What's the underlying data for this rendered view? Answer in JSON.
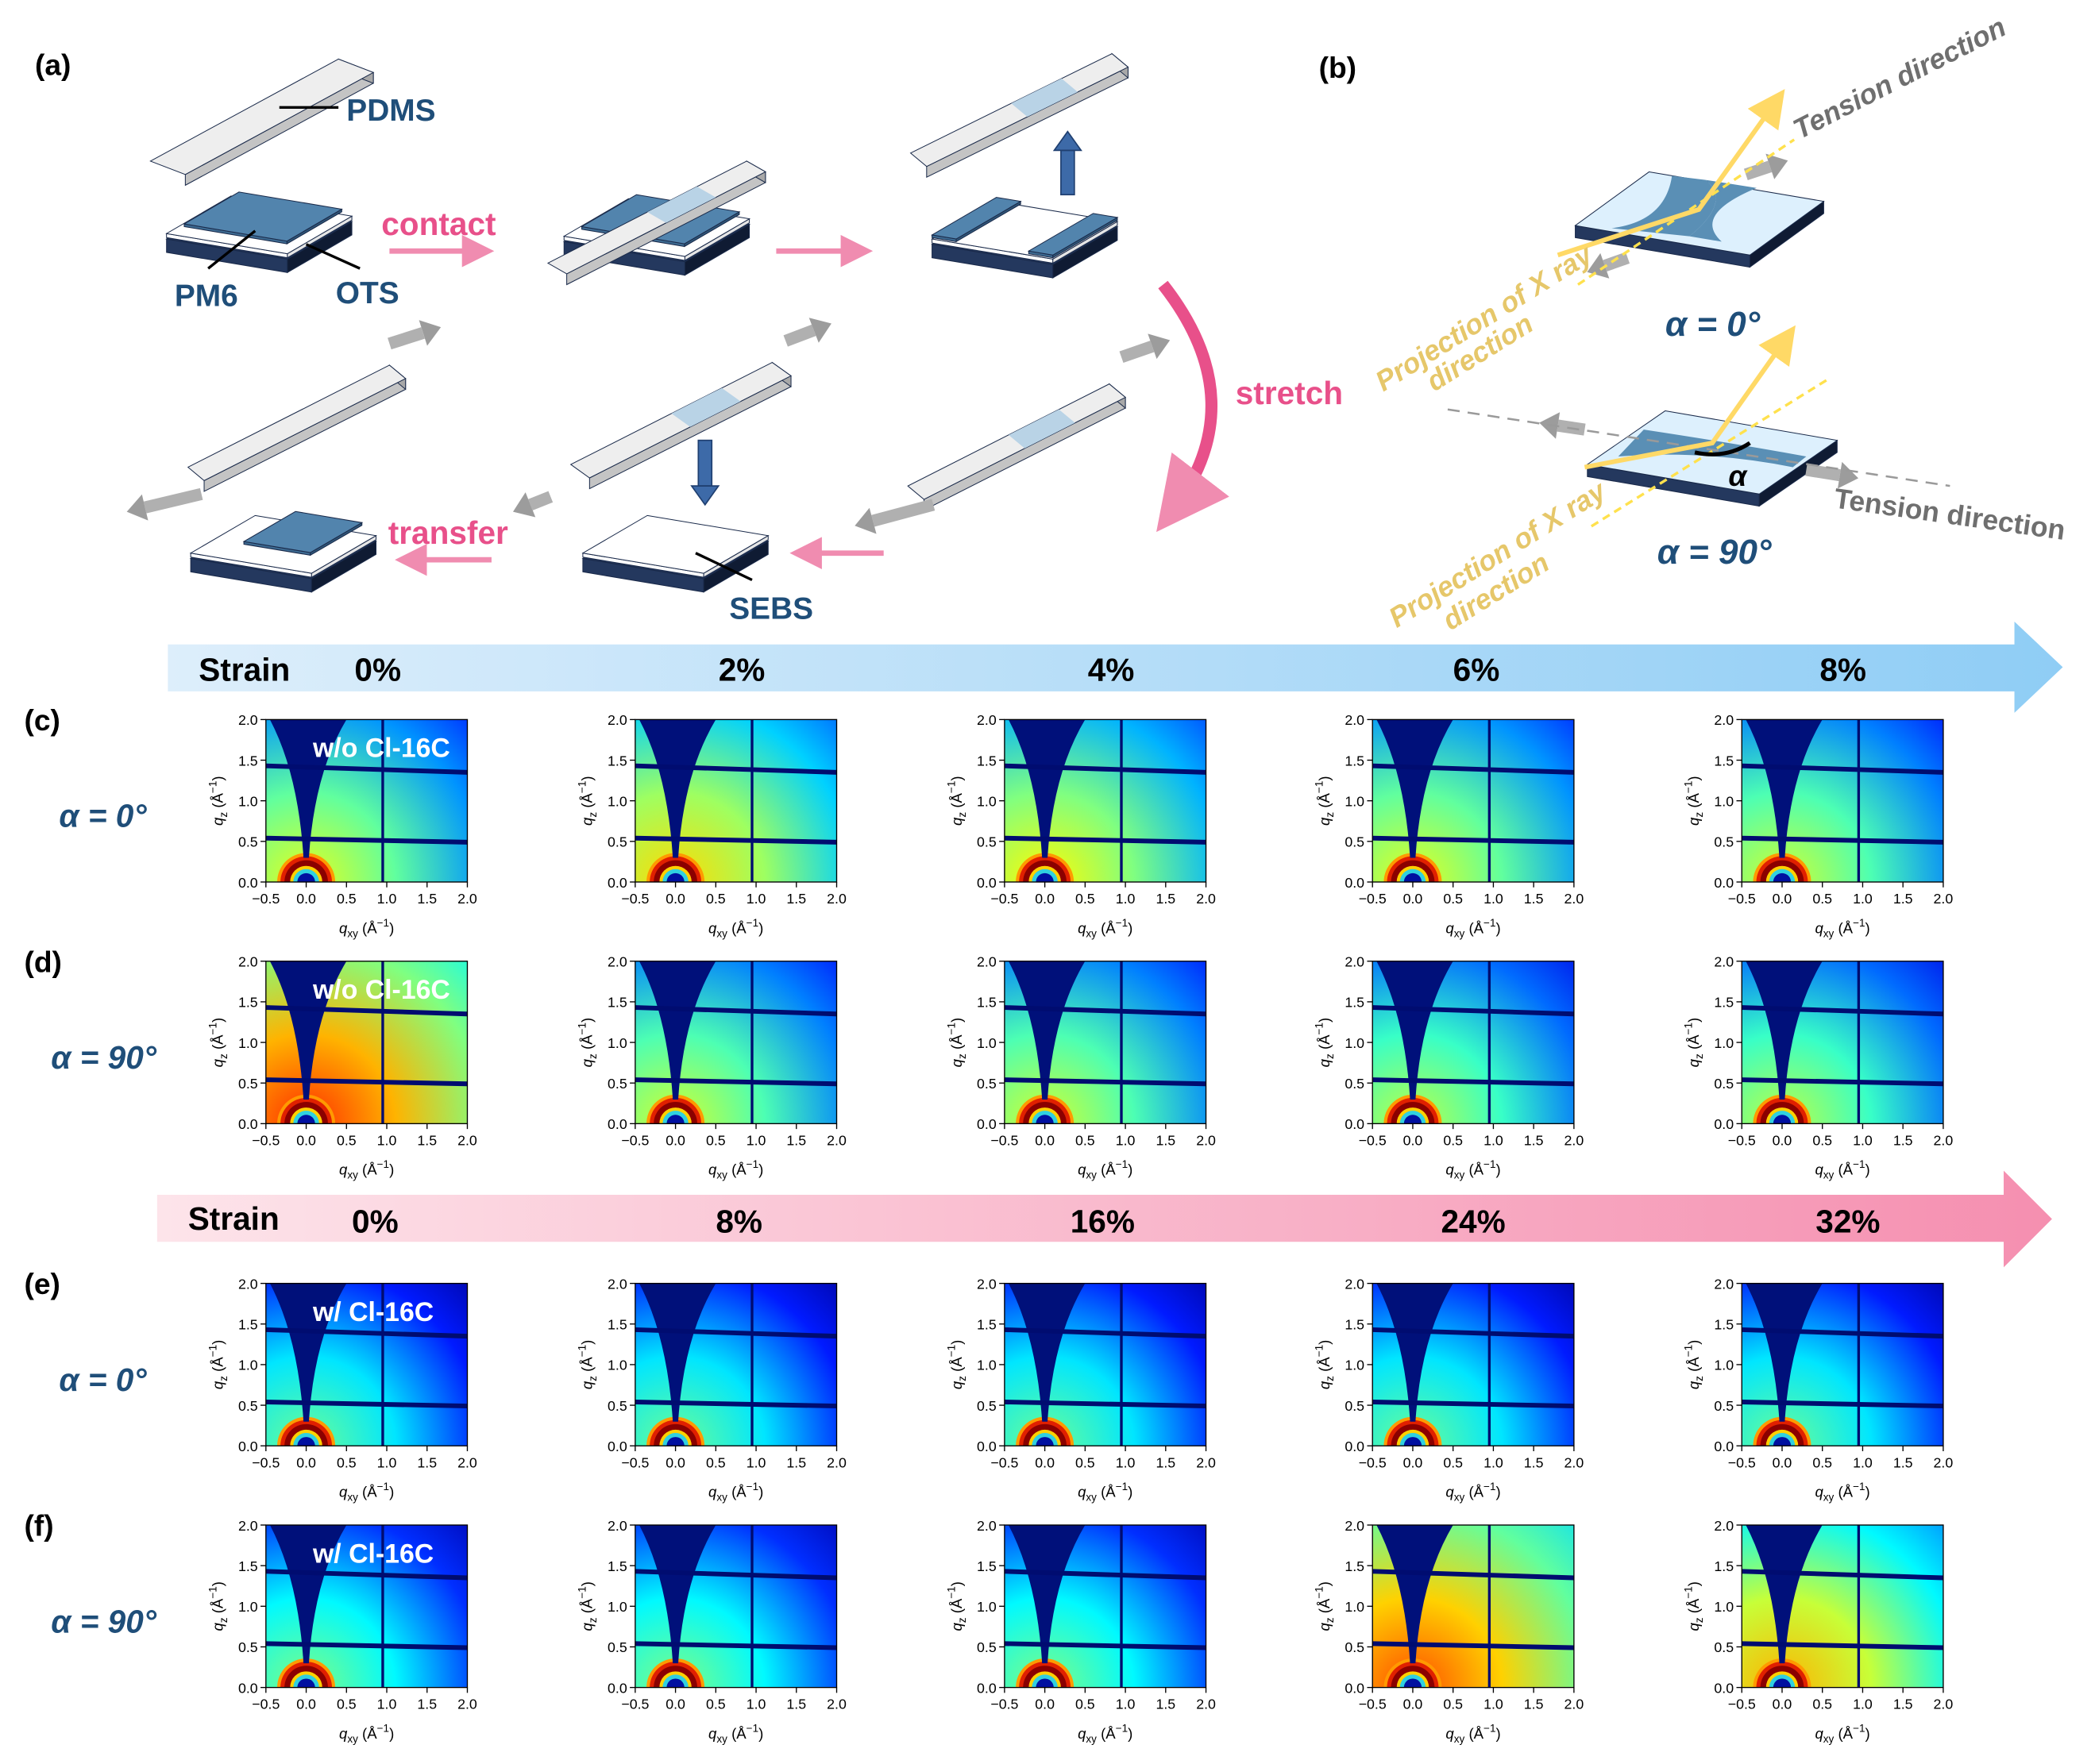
{
  "panel_labels": {
    "a": "(a)",
    "b": "(b)",
    "c": "(c)",
    "d": "(d)",
    "e": "(e)",
    "f": "(f)"
  },
  "panel_a": {
    "pdms": "PDMS",
    "pm6": "PM6",
    "ots": "OTS",
    "contact": "contact",
    "stretch": "stretch",
    "transfer": "transfer",
    "sebs": "SEBS"
  },
  "panel_b": {
    "tension_direction_top": "Tension direction",
    "projection_top_line1": "Projection of X ray",
    "projection_top_line2": "direction",
    "alpha_0": "α = 0°",
    "alpha_symbol": "α",
    "tension_direction_bottom": "Tension direction",
    "projection_bottom_line1": "Projection of X ray",
    "projection_bottom_line2": "direction",
    "alpha_90": "α = 90°"
  },
  "strain_bars": [
    {
      "label": "Strain",
      "values": [
        "0%",
        "2%",
        "4%",
        "6%",
        "8%"
      ],
      "color": "#8fcdf5"
    },
    {
      "label": "Strain",
      "values": [
        "0%",
        "8%",
        "16%",
        "24%",
        "32%"
      ],
      "color": "#f58fb0"
    }
  ],
  "rows": [
    {
      "panel": "c",
      "alpha": "α = 0°",
      "sample": "w/o Cl-16C"
    },
    {
      "panel": "d",
      "alpha": "α = 90°",
      "sample": "w/o Cl-16C"
    },
    {
      "panel": "e",
      "alpha": "α = 0°",
      "sample": "w/ Cl-16C"
    },
    {
      "panel": "f",
      "alpha": "α = 90°",
      "sample": "w/ Cl-16C"
    }
  ],
  "axes": {
    "xticks": [
      "−0.5",
      "0.0",
      "0.5",
      "1.0",
      "1.5",
      "2.0"
    ],
    "yticks": [
      "0.0",
      "0.5",
      "1.0",
      "1.5",
      "2.0"
    ],
    "xlim": [
      -0.5,
      2.0
    ],
    "ylim": [
      0.0,
      2.0
    ],
    "xlabel": {
      "symbol": "q",
      "sub": "xy",
      "unit": " (Å",
      "exp": "−1",
      "close": ")"
    },
    "ylabel": {
      "symbol": "q",
      "sub": "z",
      "unit": " (Å",
      "exp": "−1",
      "close": ")"
    }
  },
  "colors": {
    "navy_text": "#1f4e79",
    "pink_text": "#e8508a",
    "film_blue": "#5284ad",
    "substrate_navy": "#24385e",
    "xray_yellow": "#ffd966"
  }
}
